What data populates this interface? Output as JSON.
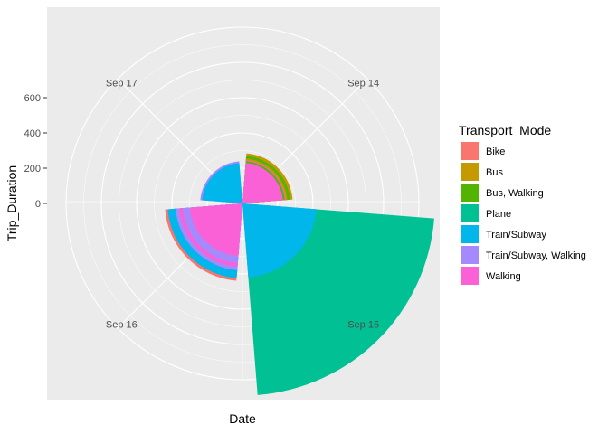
{
  "chart_data": {
    "type": "polar-bar",
    "xlabel": "Date",
    "ylabel": "Trip_Duration",
    "legend_title": "Transport_Mode",
    "legend_position": "right",
    "grid": true,
    "categories": [
      "Sep 14",
      "Sep 15",
      "Sep 16",
      "Sep 17"
    ],
    "radial_ticks": [
      "0",
      "200",
      "400",
      "600"
    ],
    "radial_tick_values": [
      0,
      200,
      400,
      600
    ],
    "radial_range": [
      -200,
      800
    ],
    "modes": [
      {
        "name": "Bike",
        "color": "#F8766D"
      },
      {
        "name": "Bus",
        "color": "#C49A00"
      },
      {
        "name": "Bus, Walking",
        "color": "#53B400"
      },
      {
        "name": "Plane",
        "color": "#00C094"
      },
      {
        "name": "Train/Subway",
        "color": "#00B6EB"
      },
      {
        "name": "Train/Subway, Walking",
        "color": "#A58AFF"
      },
      {
        "name": "Walking",
        "color": "#FB61D7"
      }
    ],
    "trips": [
      {
        "date": "Sep 14",
        "mode": "Walking",
        "duration": 30
      },
      {
        "date": "Sep 14",
        "mode": "Bus, Walking",
        "duration": 40
      },
      {
        "date": "Sep 14",
        "mode": "Walking",
        "duration": 45
      },
      {
        "date": "Sep 14",
        "mode": "Bus",
        "duration": 55
      },
      {
        "date": "Sep 14",
        "mode": "Bus, Walking",
        "duration": 70
      },
      {
        "date": "Sep 14",
        "mode": "Bus",
        "duration": 85
      },
      {
        "date": "Sep 15",
        "mode": "Train/Subway",
        "duration": 220
      },
      {
        "date": "Sep 15",
        "mode": "Plane",
        "duration": 890
      },
      {
        "date": "Sep 16",
        "mode": "Walking",
        "duration": 100
      },
      {
        "date": "Sep 16",
        "mode": "Train/Subway, Walking",
        "duration": 140
      },
      {
        "date": "Sep 16",
        "mode": "Walking",
        "duration": 160
      },
      {
        "date": "Sep 16",
        "mode": "Train/Subway, Walking",
        "duration": 180
      },
      {
        "date": "Sep 16",
        "mode": "Train/Subway",
        "duration": 195
      },
      {
        "date": "Sep 16",
        "mode": "Train/Subway",
        "duration": 210
      },
      {
        "date": "Sep 16",
        "mode": "Train/Subway",
        "duration": 225
      },
      {
        "date": "Sep 16",
        "mode": "Bike",
        "duration": 240
      },
      {
        "date": "Sep 17",
        "mode": "Train/Subway",
        "duration": 30
      },
      {
        "date": "Sep 17",
        "mode": "Train/Subway, Walking",
        "duration": 40
      }
    ]
  }
}
